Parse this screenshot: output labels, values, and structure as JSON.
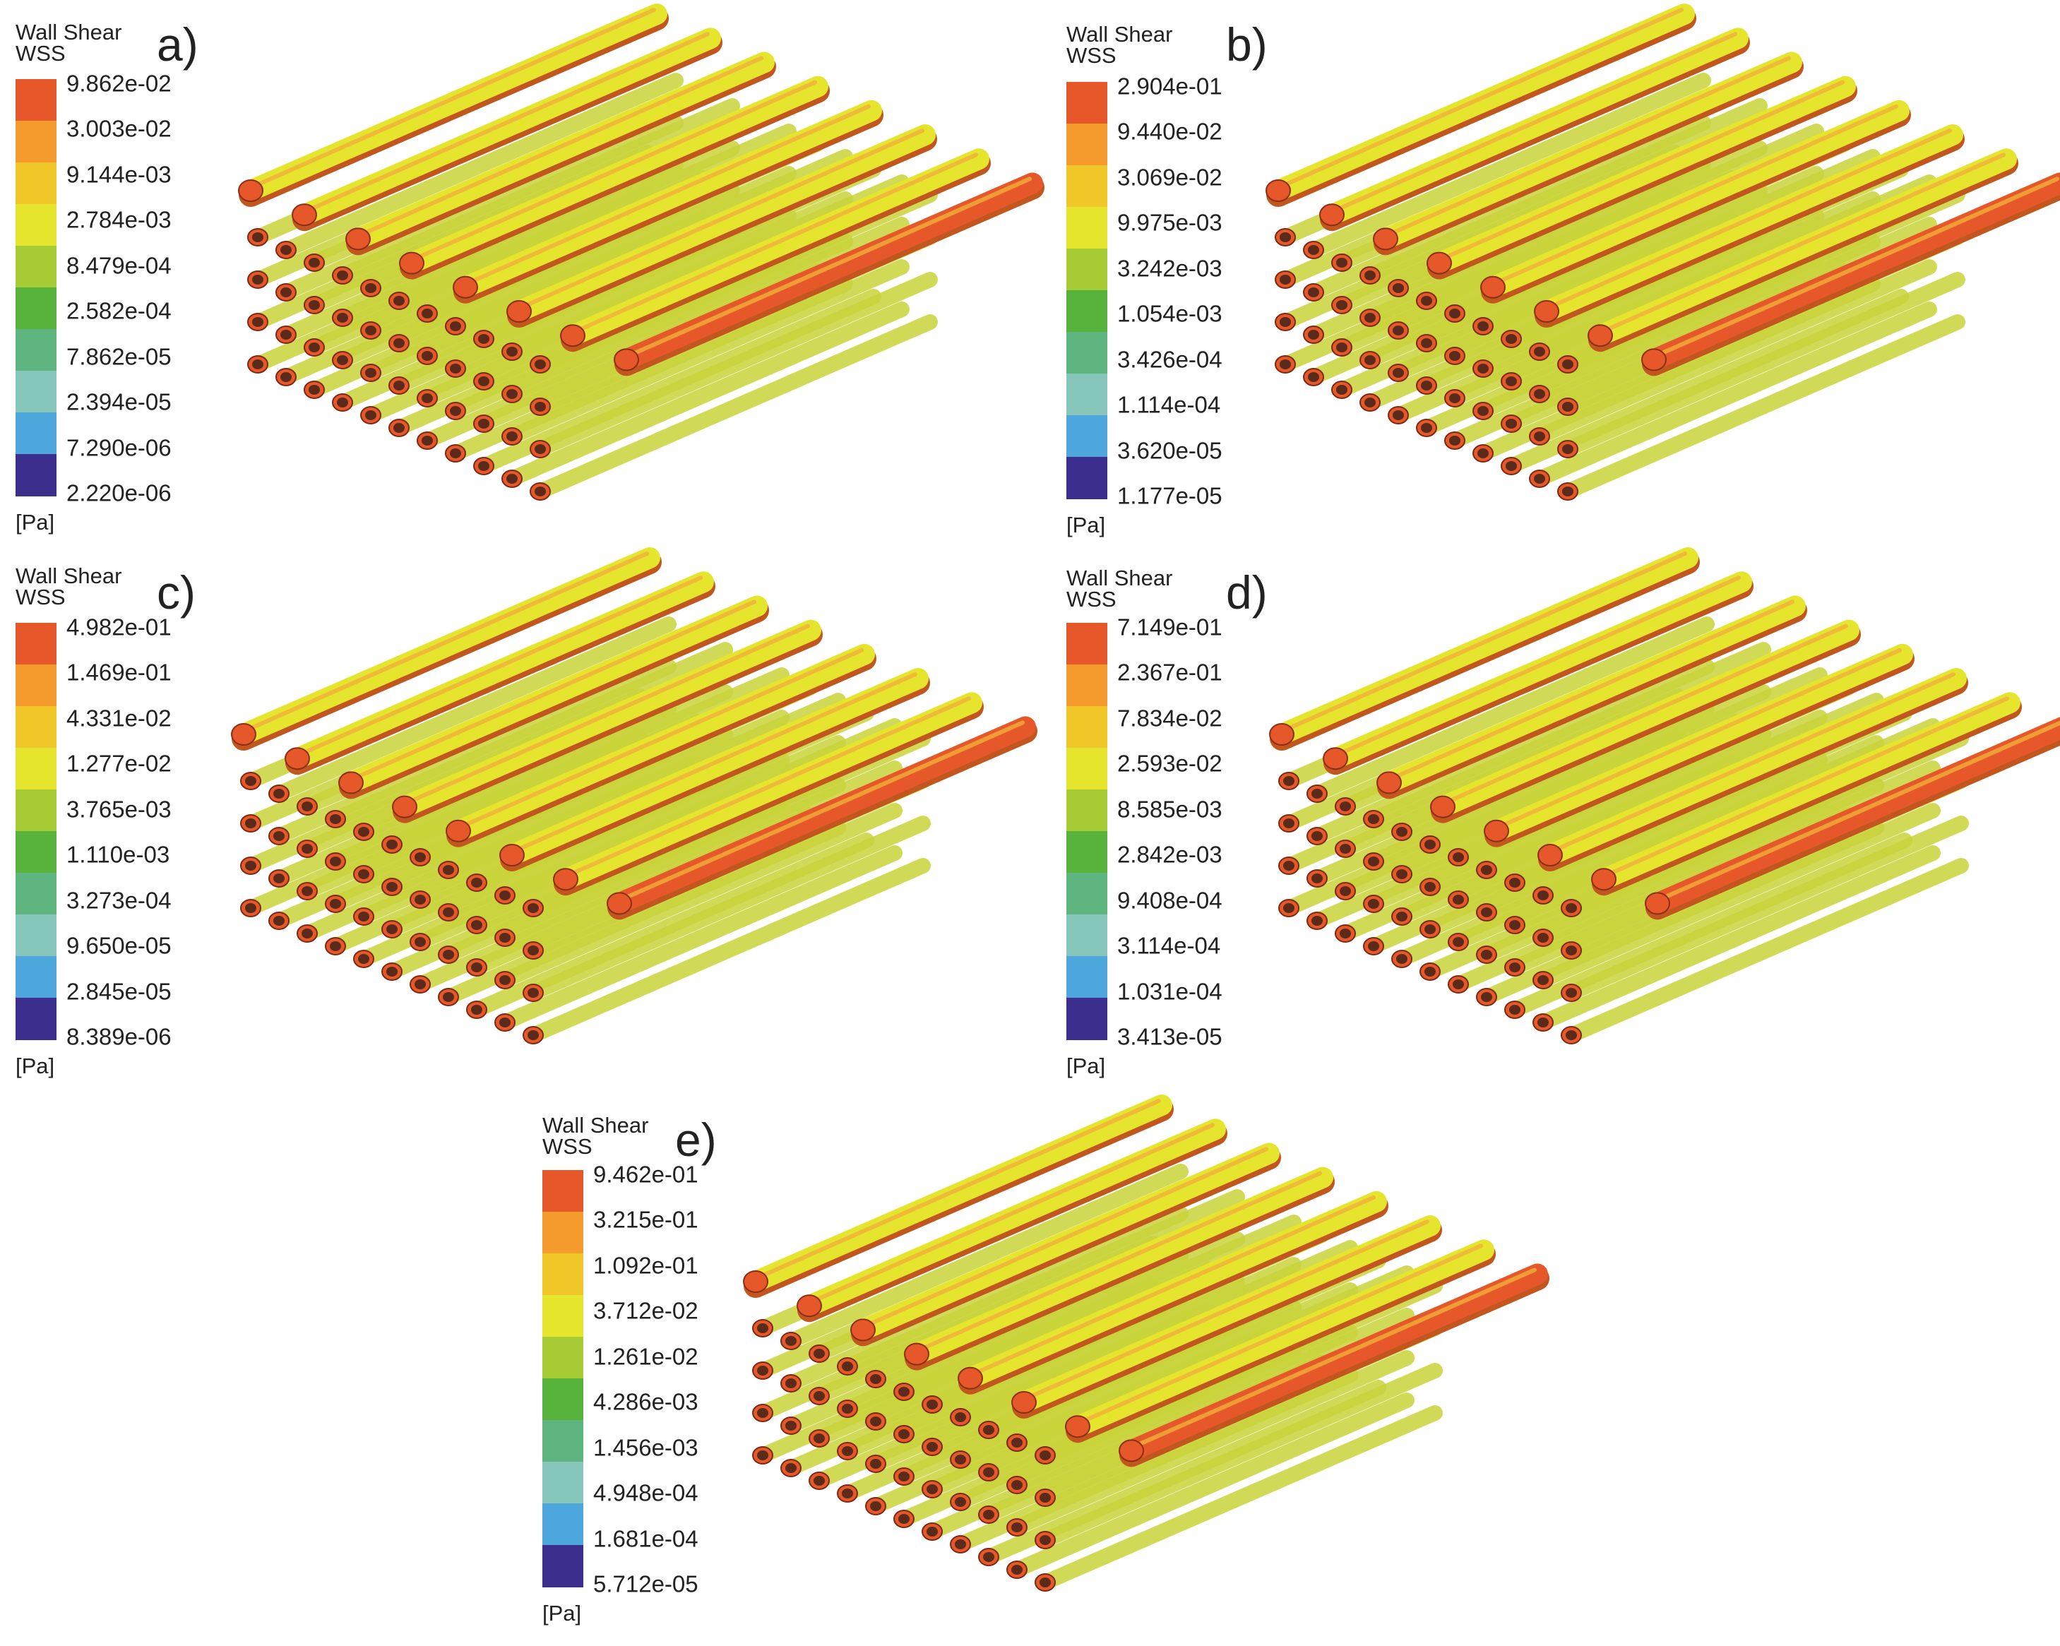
{
  "legend_common": {
    "title": "Wall Shear",
    "variable": "WSS",
    "unit": "[Pa]"
  },
  "colors": [
    "#e6582a",
    "#f59a2c",
    "#f1c628",
    "#e6e52e",
    "#a7cb34",
    "#57b33b",
    "#5fb57f",
    "#86c6bb",
    "#4ea7dc",
    "#3b2e8c"
  ],
  "panels": [
    {
      "letter": "a)",
      "ticks": [
        "9.862e-02",
        "3.003e-02",
        "9.144e-03",
        "2.784e-03",
        "8.479e-04",
        "2.582e-04",
        "7.862e-05",
        "2.394e-05",
        "7.290e-06",
        "2.220e-06"
      ]
    },
    {
      "letter": "b)",
      "ticks": [
        "2.904e-01",
        "9.440e-02",
        "3.069e-02",
        "9.975e-03",
        "3.242e-03",
        "1.054e-03",
        "3.426e-04",
        "1.114e-04",
        "3.620e-05",
        "1.177e-05"
      ]
    },
    {
      "letter": "c)",
      "ticks": [
        "4.982e-01",
        "1.469e-01",
        "4.331e-02",
        "1.277e-02",
        "3.765e-03",
        "1.110e-03",
        "3.273e-04",
        "9.650e-05",
        "2.845e-05",
        "8.389e-06"
      ]
    },
    {
      "letter": "d)",
      "ticks": [
        "7.149e-01",
        "2.367e-01",
        "7.834e-02",
        "2.593e-02",
        "8.585e-03",
        "2.842e-03",
        "9.408e-04",
        "3.114e-04",
        "1.031e-04",
        "3.413e-05"
      ]
    },
    {
      "letter": "e)",
      "ticks": [
        "9.462e-01",
        "3.215e-01",
        "1.092e-01",
        "3.712e-02",
        "1.261e-02",
        "4.286e-03",
        "1.456e-03",
        "4.948e-04",
        "1.681e-04",
        "5.712e-05"
      ]
    }
  ]
}
